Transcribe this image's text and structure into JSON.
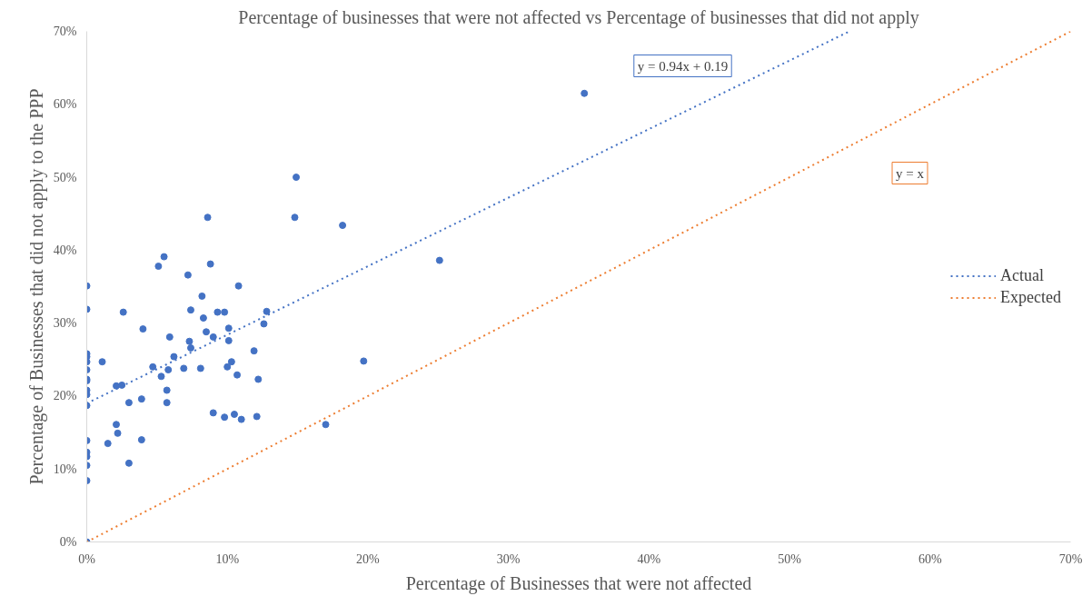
{
  "chart_data": {
    "type": "scatter",
    "title": "Percentage of businesses that were not affected vs Percentage of businesses that did not apply",
    "xlabel": "Percentage of Businesses that were not affected",
    "ylabel": "Percentage of Businesses that did not apply to the PPP",
    "xlim": [
      0,
      70
    ],
    "ylim": [
      0,
      70
    ],
    "xticks": [
      {
        "value": 0,
        "label": "0%"
      },
      {
        "value": 10,
        "label": "10%"
      },
      {
        "value": 20,
        "label": "20%"
      },
      {
        "value": 30,
        "label": "30%"
      },
      {
        "value": 40,
        "label": "40%"
      },
      {
        "value": 50,
        "label": "50%"
      },
      {
        "value": 60,
        "label": "60%"
      },
      {
        "value": 70,
        "label": "70%"
      }
    ],
    "yticks": [
      {
        "value": 0,
        "label": "0%"
      },
      {
        "value": 10,
        "label": "10%"
      },
      {
        "value": 20,
        "label": "20%"
      },
      {
        "value": 30,
        "label": "30%"
      },
      {
        "value": 40,
        "label": "40%"
      },
      {
        "value": 50,
        "label": "50%"
      },
      {
        "value": 60,
        "label": "60%"
      },
      {
        "value": 70,
        "label": "70%"
      }
    ],
    "grid": false,
    "legend": "right",
    "series": [
      {
        "color": "#4472c4",
        "marker": "circle",
        "x": [
          0,
          0,
          0,
          0,
          0,
          0,
          0,
          0,
          0,
          0,
          0,
          0,
          0,
          0,
          0,
          0,
          0,
          5.5,
          5.1,
          8.8,
          7.2,
          10.8,
          8.2,
          2.6,
          7.4,
          9.3,
          9.8,
          12.8,
          8.3,
          12.6,
          4.0,
          10.1,
          8.5,
          5.9,
          9.0,
          7.3,
          10.1,
          7.4,
          11.9,
          6.2,
          1.1,
          10.3,
          10.0,
          4.7,
          5.8,
          6.9,
          8.1,
          5.3,
          10.7,
          12.2,
          2.1,
          2.5,
          5.7,
          3.9,
          3.0,
          5.7,
          9.0,
          9.8,
          10.5,
          11.0,
          12.1,
          2.1,
          2.2,
          1.5,
          3.9,
          3.0,
          14.9,
          8.6,
          14.8,
          18.2,
          25.1,
          19.7,
          17.0,
          35.4
        ],
        "values": [
          35.1,
          31.9,
          25.8,
          25.4,
          24.7,
          23.6,
          22.3,
          22.1,
          20.8,
          20.2,
          18.7,
          13.9,
          12.3,
          11.7,
          10.5,
          8.4,
          0,
          39.1,
          37.8,
          38.1,
          36.6,
          35.1,
          33.7,
          31.5,
          31.8,
          31.5,
          31.5,
          31.6,
          30.7,
          29.9,
          29.2,
          29.3,
          28.8,
          28.1,
          28.1,
          27.5,
          27.6,
          26.6,
          26.2,
          25.4,
          24.7,
          24.7,
          24.0,
          24.0,
          23.6,
          23.8,
          23.8,
          22.7,
          22.9,
          22.3,
          21.4,
          21.5,
          20.8,
          19.6,
          19.1,
          19.1,
          17.7,
          17.1,
          17.5,
          16.8,
          17.2,
          16.1,
          14.9,
          13.5,
          14.0,
          10.8,
          50.0,
          44.5,
          44.5,
          43.4,
          38.6,
          24.8,
          16.1,
          61.5
        ]
      },
      {
        "type": "line",
        "name": "Actual",
        "color": "#4472c4",
        "line_style": "dotted",
        "x": [
          0,
          54.26
        ],
        "values": [
          19,
          70
        ]
      },
      {
        "type": "line",
        "name": "Expected",
        "color": "#ed7d31",
        "line_style": "dotted",
        "x": [
          0,
          70
        ],
        "values": [
          0,
          70
        ]
      }
    ],
    "annotations": [
      "y = 0.94x + 0.19",
      "y = x"
    ]
  }
}
